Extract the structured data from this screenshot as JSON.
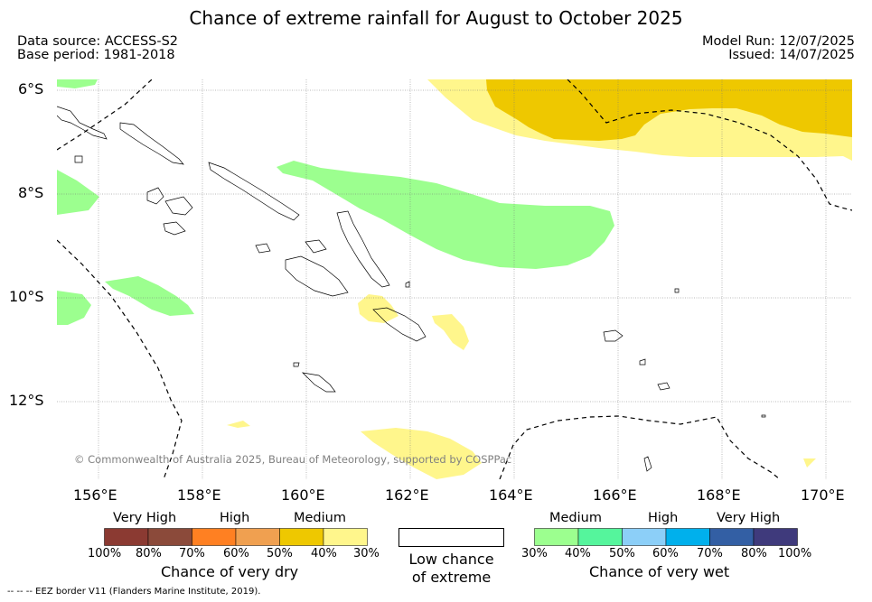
{
  "title": "Chance of extreme rainfall for August to October 2025",
  "meta": {
    "data_source": "Data source: ACCESS-S2",
    "base_period": "Base period: 1981-2018",
    "model_run": "Model Run: 12/07/2025",
    "issued": "Issued: 14/07/2025"
  },
  "map": {
    "lon_labels": [
      "156°E",
      "158°E",
      "160°E",
      "162°E",
      "164°E",
      "166°E",
      "168°E",
      "170°E"
    ],
    "lat_labels": [
      "6°S",
      "8°S",
      "10°S",
      "12°S"
    ],
    "copyright": "© Commonwealth of Australia 2025, Bureau of Meteorology, supported by COSPPac"
  },
  "colors": {
    "dry": [
      "#8b3a32",
      "#8b4a3a",
      "#ff8022",
      "#f0a050",
      "#eec800",
      "#fff68c"
    ],
    "wet": [
      "#9cff8f",
      "#55f59c",
      "#8ccff8",
      "#00b0ec",
      "#335fa4",
      "#3f3a7c"
    ],
    "land_outline": "#000000"
  },
  "legend": {
    "dry": {
      "categories": [
        "Very High",
        "High",
        "Medium"
      ],
      "ticks": [
        "100%",
        "80%",
        "70%",
        "60%",
        "50%",
        "40%",
        "30%"
      ],
      "title": "Chance of very dry"
    },
    "neutral": {
      "title_line1": "Low chance",
      "title_line2": "of extreme"
    },
    "wet": {
      "categories": [
        "Medium",
        "High",
        "Very High"
      ],
      "ticks": [
        "30%",
        "40%",
        "50%",
        "60%",
        "70%",
        "80%",
        "100%"
      ],
      "title": "Chance of very wet"
    }
  },
  "footer": "--  --  -- EEZ border V11 (Flanders Marine Institute, 2019)."
}
